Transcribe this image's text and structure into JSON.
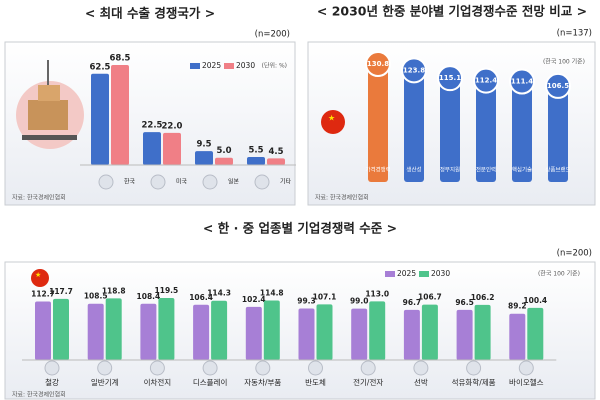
{
  "chart_data": [
    {
      "type": "bar",
      "title": "< 최대 수출 경쟁국가 >",
      "note": "(n=200)",
      "unit": "(단위: %)",
      "source": "자료: 한국경제인협회",
      "categories": [
        "한국",
        "미국",
        "일본",
        "기타"
      ],
      "series": [
        {
          "name": "2025",
          "color": "#3f6fc9",
          "values": [
            62.5,
            22.5,
            9.5,
            5.5
          ],
          "value_labels": [
            "62.5",
            "22.5",
            "9.5",
            "5.5"
          ]
        },
        {
          "name": "2030",
          "color": "#f07f86",
          "values": [
            68.5,
            22.0,
            5.0,
            4.5
          ],
          "value_labels": [
            "68.5",
            "22.0",
            "5.0",
            "4.5"
          ]
        }
      ]
    },
    {
      "type": "pillar",
      "title": "< 2030년 한중 분야별 기업경쟁수준 전망 비교 >",
      "note": "(n=137)",
      "unit": "(한국 100 기준)",
      "source": "자료: 한국경제인협회",
      "categories": [
        "가격경쟁력",
        "생산성",
        "정부지원",
        "전문인력",
        "핵심기술",
        "상품브랜드"
      ],
      "values": [
        130.8,
        123.8,
        115.1,
        112.4,
        111.4,
        106.5
      ],
      "colors": [
        "#ea7a3c",
        "#3f6fc9",
        "#3f6fc9",
        "#3f6fc9",
        "#3f6fc9",
        "#3f6fc9"
      ]
    },
    {
      "type": "bar",
      "title": "< 한 · 중 업종별 기업경쟁력 수준 >",
      "note": "(n=200)",
      "unit": "(한국 100 기준)",
      "source": "자료: 한국경제인협회",
      "categories": [
        "철강",
        "일반기계",
        "이차전지",
        "디스플레이",
        "자동차/부품",
        "반도체",
        "전기/전자",
        "선박",
        "석유화학/제품",
        "바이오헬스"
      ],
      "series": [
        {
          "name": "2025",
          "color": "#a77fd6",
          "values": [
            112.7,
            108.5,
            108.4,
            106.4,
            102.4,
            99.3,
            99.0,
            96.7,
            96.5,
            89.2
          ],
          "value_labels": [
            "112.7",
            "108.5",
            "108.4",
            "106.4",
            "102.4",
            "99.3",
            "99.0",
            "96.7",
            "96.5",
            "89.2"
          ]
        },
        {
          "name": "2030",
          "color": "#4fc48b",
          "values": [
            117.7,
            118.8,
            119.5,
            114.3,
            114.8,
            107.1,
            113.0,
            106.7,
            106.2,
            100.4
          ],
          "value_labels": [
            "117.7",
            "118.8",
            "119.5",
            "114.3",
            "114.8",
            "107.1",
            "113.0",
            "106.7",
            "106.2",
            "100.4"
          ]
        }
      ]
    }
  ]
}
